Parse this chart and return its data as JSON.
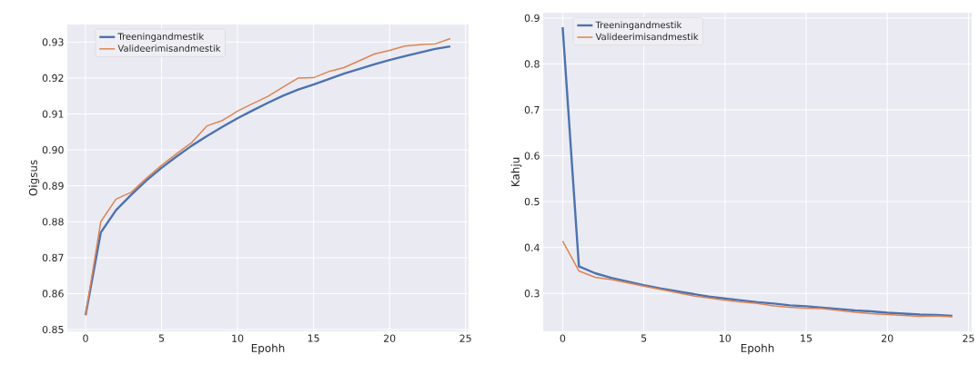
{
  "chart_data": [
    {
      "type": "line",
      "xlabel": "Epohh",
      "ylabel": "Oigsus",
      "x": [
        0,
        1,
        2,
        3,
        4,
        5,
        6,
        7,
        8,
        9,
        10,
        11,
        12,
        13,
        14,
        15,
        16,
        17,
        18,
        19,
        20,
        21,
        22,
        23,
        24
      ],
      "series": [
        {
          "name": "Treeningandmestik",
          "color": "#4c72b0",
          "values": [
            0.854,
            0.877,
            0.8832,
            0.8875,
            0.8915,
            0.895,
            0.8982,
            0.9012,
            0.9039,
            0.9064,
            0.9088,
            0.911,
            0.9131,
            0.9151,
            0.9168,
            0.9182,
            0.9197,
            0.9212,
            0.9225,
            0.9238,
            0.925,
            0.9261,
            0.9271,
            0.9281,
            0.9288
          ]
        },
        {
          "name": "Valideerimisandmestik",
          "color": "#dd8452",
          "values": [
            0.854,
            0.88,
            0.8863,
            0.8882,
            0.8921,
            0.8957,
            0.899,
            0.9021,
            0.9067,
            0.9082,
            0.9108,
            0.9129,
            0.9149,
            0.9175,
            0.92,
            0.9201,
            0.9218,
            0.9229,
            0.9248,
            0.9267,
            0.9277,
            0.9289,
            0.9293,
            0.9295,
            0.931
          ]
        }
      ],
      "xlim": [
        -1.2,
        25.2
      ],
      "ylim": [
        0.8495,
        0.9349
      ],
      "xticks": [
        0,
        5,
        10,
        15,
        20,
        25
      ],
      "yticks": [
        0.85,
        0.86,
        0.87,
        0.88,
        0.89,
        {
          "value": 0.9,
          "label": "0.90"
        },
        0.91,
        0.92,
        0.93
      ],
      "grid": true,
      "legend": "top left"
    },
    {
      "type": "line",
      "xlabel": "Epohh",
      "ylabel": "Kahju",
      "x": [
        0,
        1,
        2,
        3,
        4,
        5,
        6,
        7,
        8,
        9,
        10,
        11,
        12,
        13,
        14,
        15,
        16,
        17,
        18,
        19,
        20,
        21,
        22,
        23,
        24
      ],
      "series": [
        {
          "name": "Treeningandmestik",
          "color": "#4c72b0",
          "values": [
            0.88,
            0.359,
            0.344,
            0.334,
            0.326,
            0.318,
            0.311,
            0.305,
            0.299,
            0.293,
            0.289,
            0.285,
            0.281,
            0.278,
            0.274,
            0.272,
            0.269,
            0.266,
            0.263,
            0.261,
            0.258,
            0.256,
            0.254,
            0.253,
            0.251
          ]
        },
        {
          "name": "Valideerimisandmestik",
          "color": "#dd8452",
          "values": [
            0.414,
            0.349,
            0.335,
            0.33,
            0.323,
            0.316,
            0.309,
            0.302,
            0.295,
            0.29,
            0.285,
            0.281,
            0.278,
            0.273,
            0.27,
            0.268,
            0.267,
            0.263,
            0.259,
            0.256,
            0.254,
            0.252,
            0.25,
            0.251,
            0.249
          ]
        }
      ],
      "xlim": [
        -1.2,
        25.2
      ],
      "ylim": [
        0.2174,
        0.9116
      ],
      "xticks": [
        0,
        5,
        10,
        15,
        20,
        25
      ],
      "yticks": [
        0.3,
        0.4,
        0.5,
        0.6,
        0.7,
        0.8,
        0.9
      ],
      "grid": true,
      "legend": "top left"
    }
  ]
}
